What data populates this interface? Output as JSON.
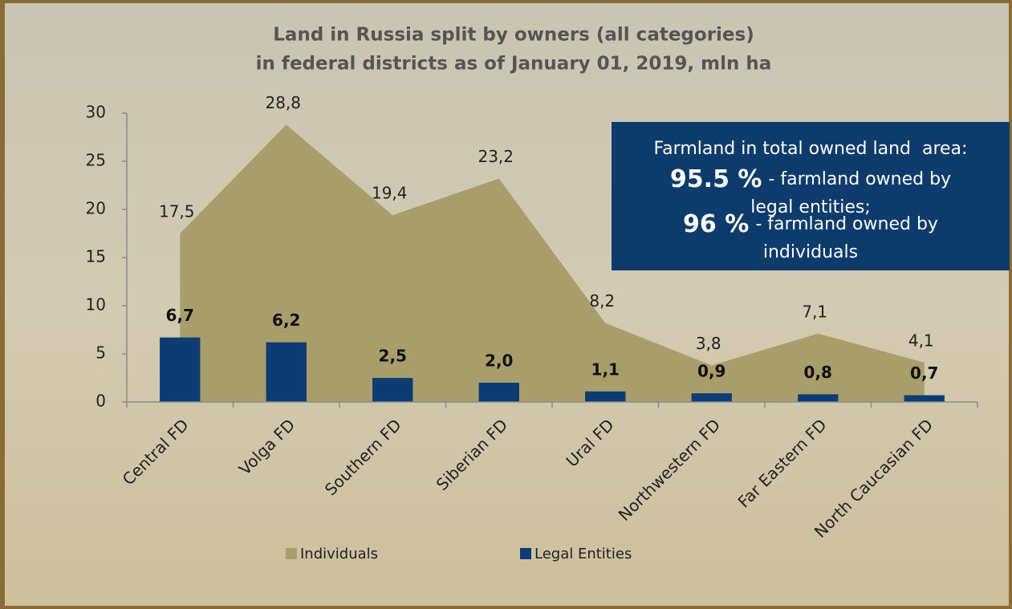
{
  "chart_data": {
    "type": "combo",
    "title": [
      "Land in Russia split by owners (all categories)",
      "in federal districts as of January 01, 2019, mln ha"
    ],
    "categories": [
      "Central FD",
      "Volga FD",
      "Southern FD",
      "Siberian FD",
      "Ural FD",
      "Northwestern FD",
      "Far Eastern FD",
      "North Caucasian FD"
    ],
    "series": [
      {
        "name": "Individuals",
        "type": "area",
        "color": "#a99d6b",
        "values": [
          17.5,
          28.8,
          19.4,
          23.2,
          8.2,
          3.8,
          7.1,
          4.1
        ],
        "value_labels": [
          "17,5",
          "28,8",
          "19,4",
          "23,2",
          "8,2",
          "3,8",
          "7,1",
          "4,1"
        ]
      },
      {
        "name": "Legal Entities",
        "type": "bar",
        "color": "#0d3b73",
        "values": [
          6.7,
          6.2,
          2.5,
          2.0,
          1.1,
          0.9,
          0.8,
          0.7
        ],
        "value_labels": [
          "6,7",
          "6,2",
          "2,5",
          "2,0",
          "1,1",
          "0,9",
          "0,8",
          "0,7"
        ]
      }
    ],
    "ylim": [
      0,
      30
    ],
    "yticks": [
      0,
      5,
      10,
      15,
      20,
      25,
      30
    ],
    "legend": "bottom",
    "annotation": {
      "heading": "Farmland in total owned land  area:",
      "items": [
        {
          "highlight": "95.5 %",
          "text": [
            "- farmland owned by",
            "legal entities;"
          ]
        },
        {
          "highlight": "96 %",
          "text": [
            "- farmland owned by",
            "individuals"
          ]
        }
      ]
    }
  }
}
